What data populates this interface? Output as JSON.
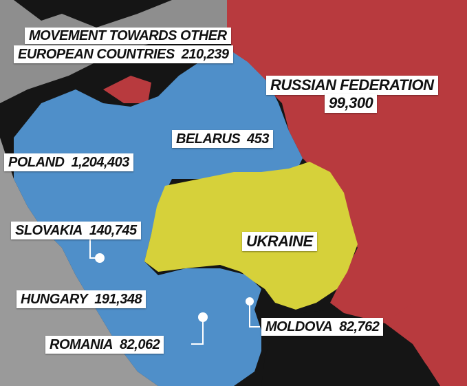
{
  "colors": {
    "russia": "#b83a3e",
    "host_countries": "#4f8fc9",
    "ukraine": "#d6d13a",
    "sea": "#151515",
    "neutral_land": "#9a9a9a",
    "label_bg": "#ffffff"
  },
  "labels": {
    "europe": {
      "line1": "MOVEMENT TOWARDS OTHER",
      "line2": "EUROPEAN COUNTRIES",
      "value": "210,239"
    },
    "russia": {
      "name": "RUSSIAN FEDERATION",
      "value": "99,300"
    },
    "belarus": {
      "name": "BELARUS",
      "value": "453"
    },
    "poland": {
      "name": "POLAND",
      "value": "1,204,403"
    },
    "slovakia": {
      "name": "SLOVAKIA",
      "value": "140,745"
    },
    "ukraine": {
      "name": "UKRAINE"
    },
    "hungary": {
      "name": "HUNGARY",
      "value": "191,348"
    },
    "moldova": {
      "name": "MOLDOVA",
      "value": "82,762"
    },
    "romania": {
      "name": "ROMANIA",
      "value": "82,062"
    }
  }
}
